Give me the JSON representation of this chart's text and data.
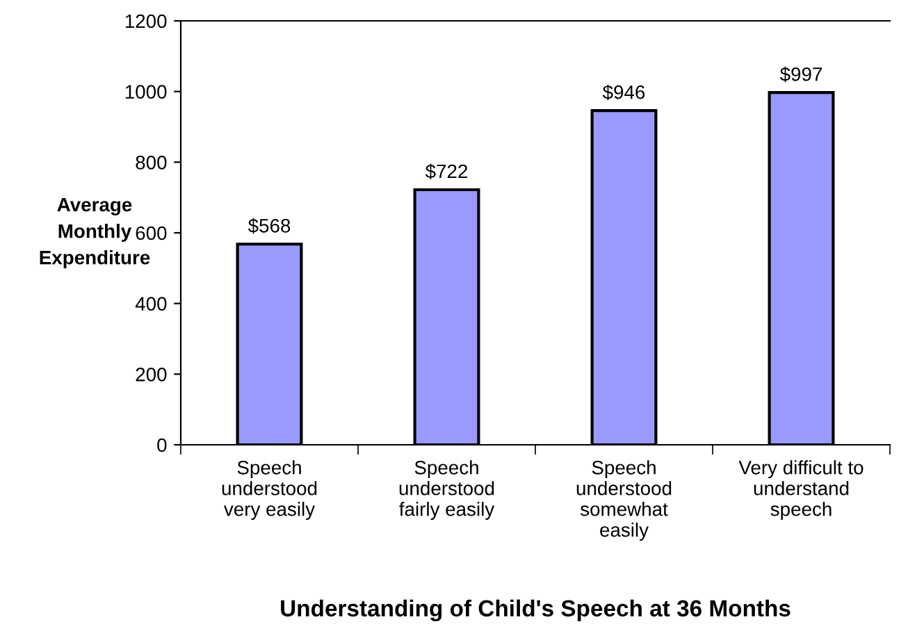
{
  "chart_data": {
    "type": "bar",
    "xlabel": "Understanding of Child's Speech at 36 Months",
    "ylabel": "Average\nMonthly\nExpenditure",
    "categories": [
      "Speech\nunderstood\nvery easily",
      "Speech\nunderstood\nfairly easily",
      "Speech\nunderstood\nsomewhat\neasily",
      "Very difficult to\nunderstand\nspeech"
    ],
    "values": [
      568,
      722,
      946,
      997
    ],
    "value_labels": [
      "$568",
      "$722",
      "$946",
      "$997"
    ],
    "color": "#9999ff",
    "ylim": [
      0,
      1200
    ],
    "yticks": [
      0,
      200,
      400,
      600,
      800,
      1000,
      1200
    ],
    "grid": false
  }
}
